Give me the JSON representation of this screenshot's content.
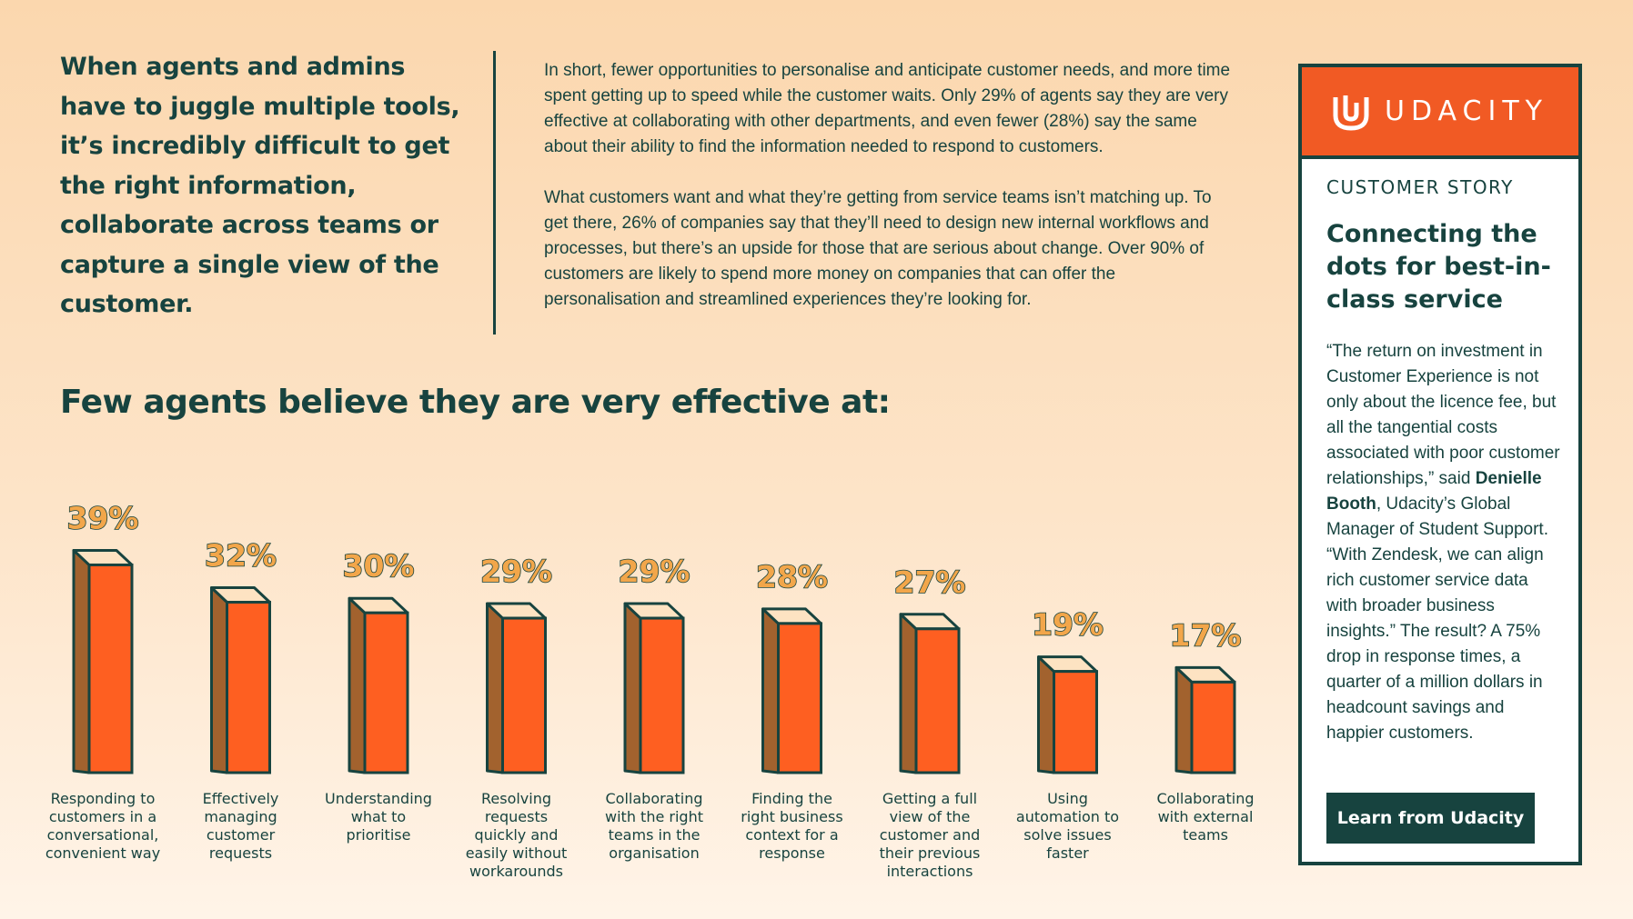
{
  "intro": "When agents and admins have to juggle multiple tools, it’s incredibly difficult to get the right information, collaborate across teams or capture a single view of the customer.",
  "body": {
    "p1": "In short, fewer opportunities to personalise and anticipate customer needs, and more time spent getting up to speed while the customer waits. Only 29% of agents say they are very effective at collaborating with other departments, and even fewer (28%) say the same about their ability to find the information needed to respond to customers.",
    "p2": "What customers want and what they’re getting from service teams isn’t matching up. To get there, 26% of companies say that they’ll need to design new internal workflows and processes, but there’s an upside for those that are serious about change. Over 90% of customers are likely to spend more money on companies that can offer the personalisation and streamlined experiences they’re looking for."
  },
  "chart_data": {
    "type": "bar",
    "title": "Few agents believe they are very effective at:",
    "categories": [
      [
        "Responding to",
        "customers in a",
        "conversational,",
        "convenient way"
      ],
      [
        "Effectively",
        "managing",
        "customer",
        "requests"
      ],
      [
        "Understanding",
        "what to",
        "prioritise"
      ],
      [
        "Resolving",
        "requests",
        "quickly and",
        "easily without",
        "workarounds"
      ],
      [
        "Collaborating",
        "with the right",
        "teams in the",
        "organisation"
      ],
      [
        "Finding the",
        "right business",
        "context for a",
        "response"
      ],
      [
        "Getting a full",
        "view of the",
        "customer and",
        "their previous",
        "interactions"
      ],
      [
        "Using",
        "automation to",
        "solve issues",
        "faster"
      ],
      [
        "Collaborating",
        "with external",
        "teams"
      ]
    ],
    "values": [
      39,
      32,
      30,
      29,
      29,
      28,
      27,
      19,
      17
    ],
    "value_labels": [
      "39%",
      "32%",
      "30%",
      "29%",
      "29%",
      "28%",
      "27%",
      "19%",
      "17%"
    ],
    "unit": "%",
    "colors": {
      "front": "#fe5f21",
      "side": "#a2622e",
      "top": "#fde3c2",
      "outline": "#17433f",
      "label_fill": "#f2a64a"
    }
  },
  "card": {
    "logo_text": "UDACITY",
    "label": "CUSTOMER STORY",
    "title": "Connecting the dots for best-in-class service",
    "quote_before": "“The return on investment in Customer Experience is not only about the licence fee, but all the tangential costs associated with poor customer relationships,” said ",
    "quote_name": "Denielle Booth",
    "quote_after": ", Udacity’s Global Manager of Student Support. “With Zendesk, we can align rich customer service data with broader business insights.” The result? A 75% drop in response times, a quarter of a million dollars in headcount savings and happier customers.",
    "cta_label": "Learn from Udacity",
    "header_color": "#f15a24"
  }
}
